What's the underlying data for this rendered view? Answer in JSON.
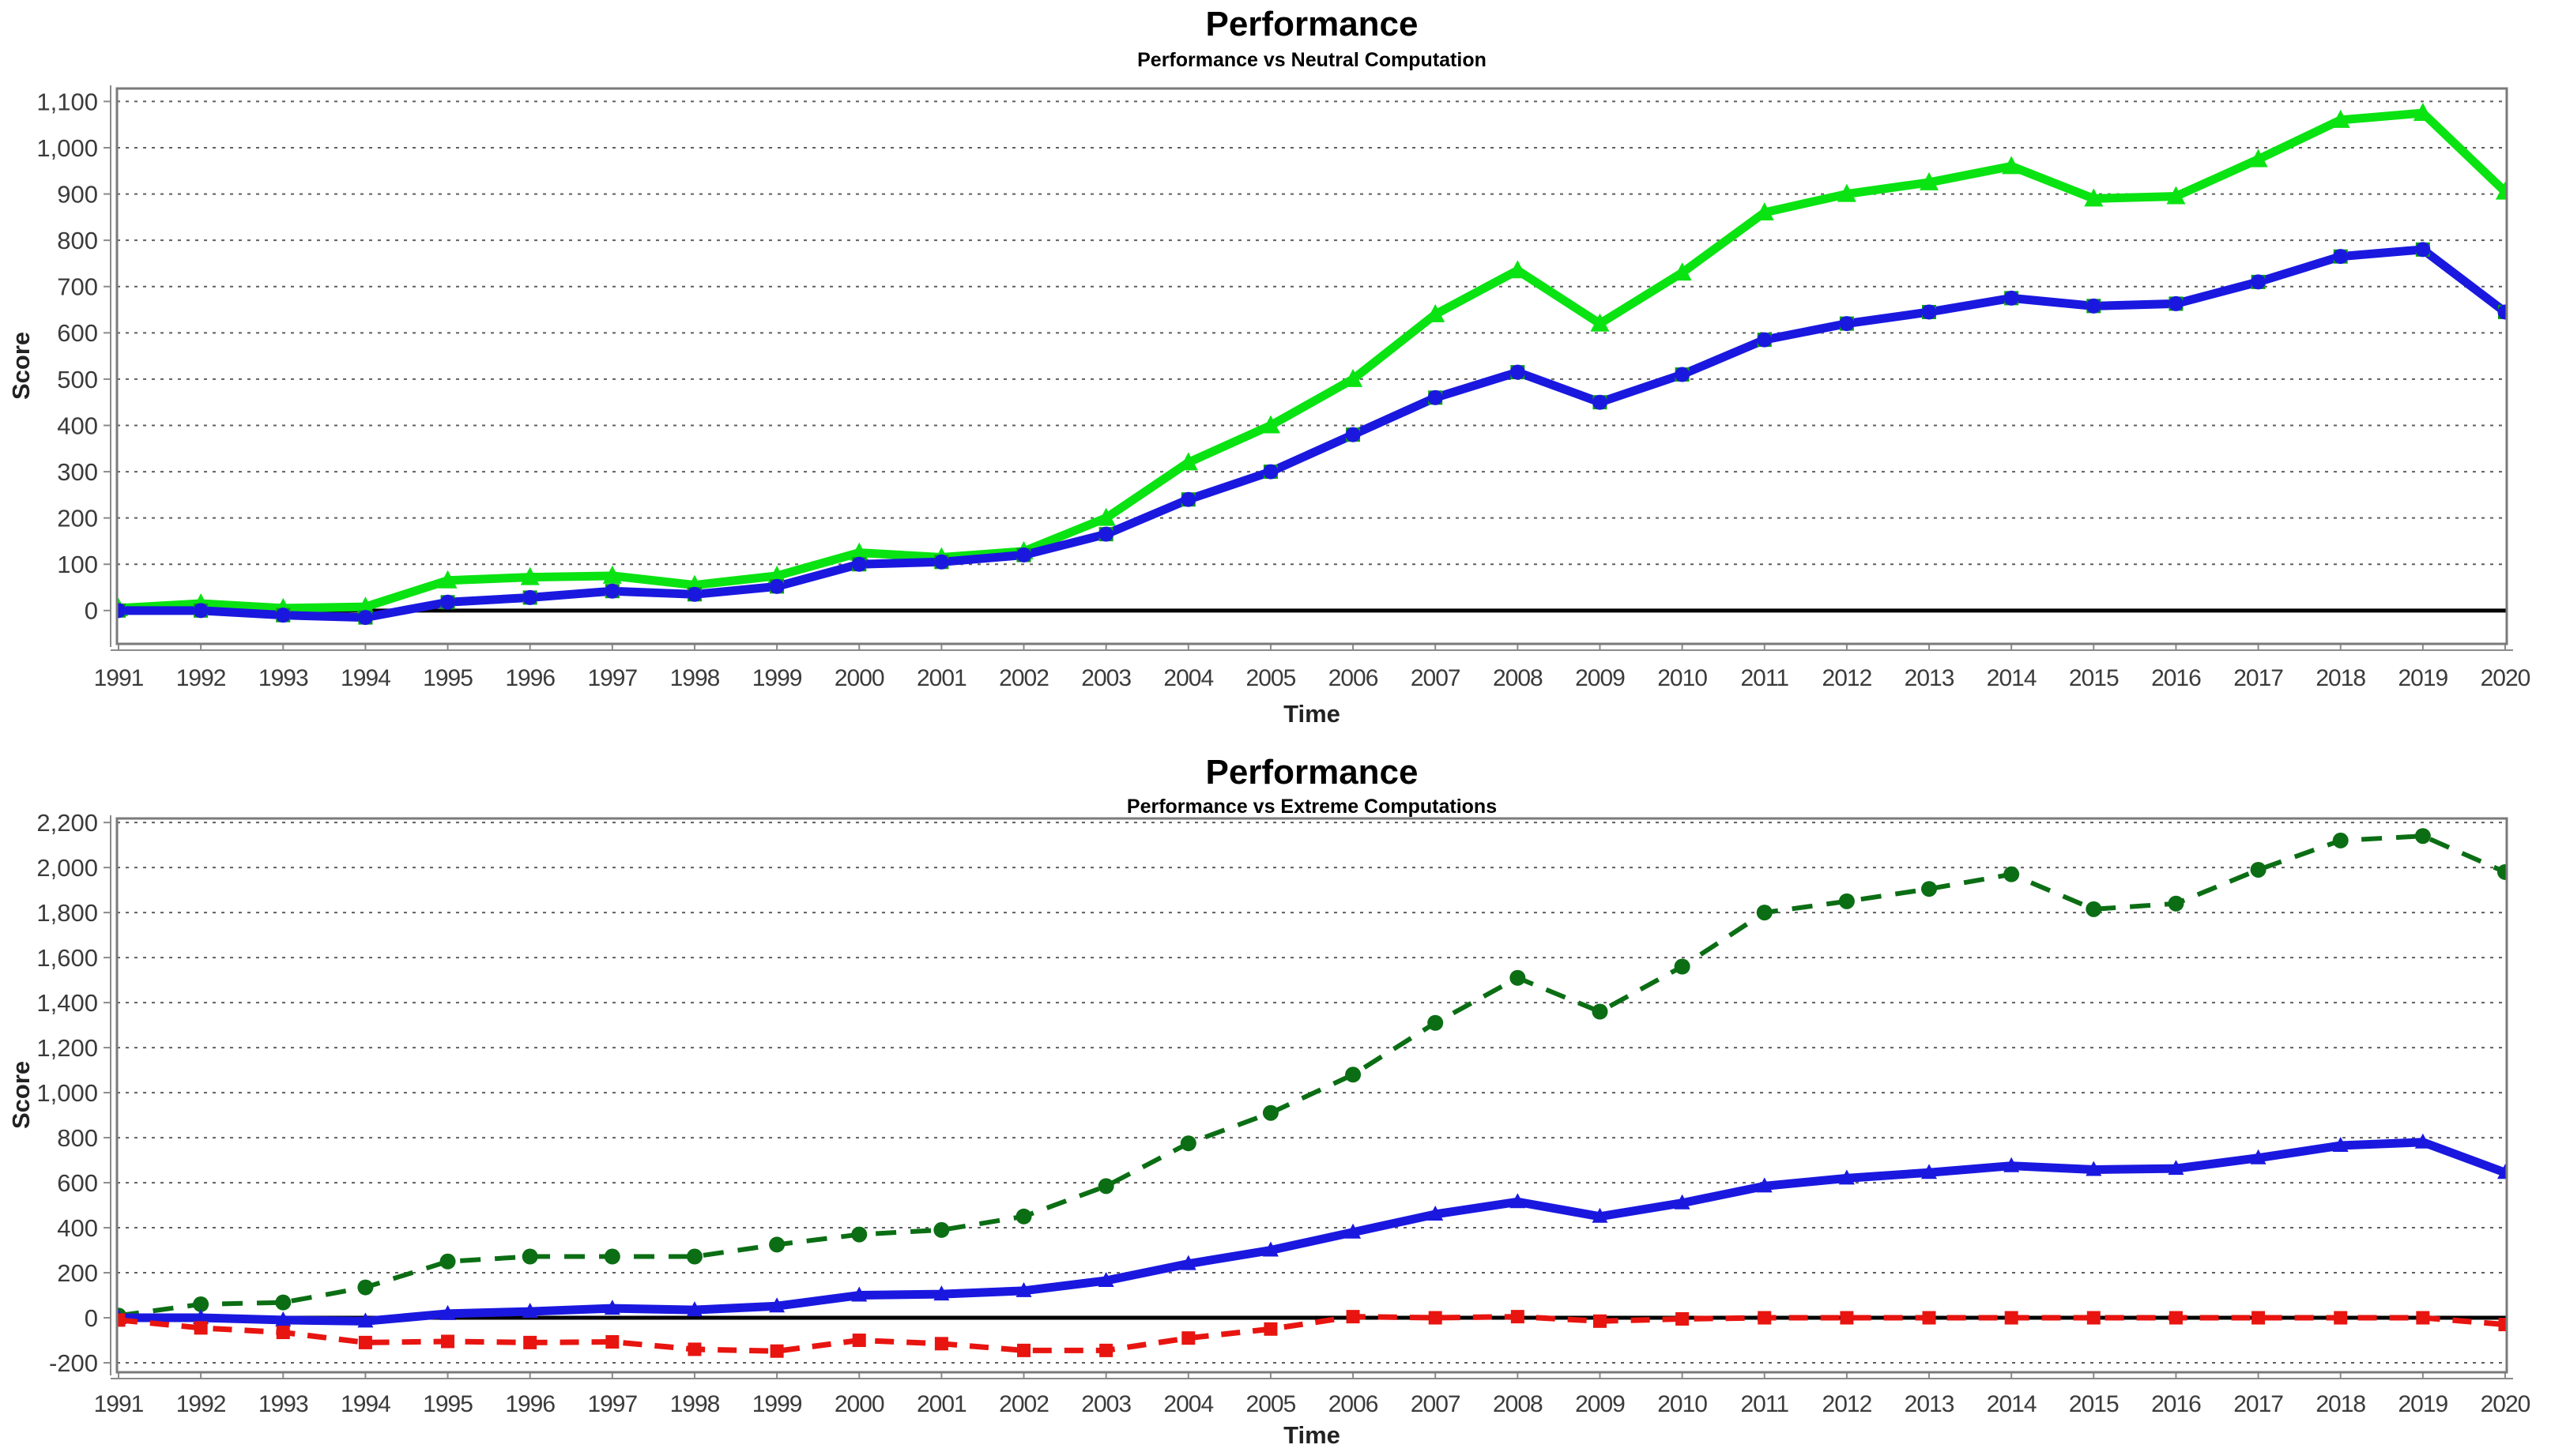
{
  "chart_data": [
    {
      "type": "line",
      "title": "Performance",
      "subtitle": "Performance vs Neutral Computation",
      "xlabel": "Time",
      "ylabel": "Score",
      "x": [
        1991,
        1992,
        1993,
        1994,
        1995,
        1996,
        1997,
        1998,
        1999,
        2000,
        2001,
        2002,
        2003,
        2004,
        2005,
        2006,
        2007,
        2008,
        2009,
        2010,
        2011,
        2012,
        2013,
        2014,
        2015,
        2016,
        2017,
        2018,
        2019,
        2020
      ],
      "yticks": [
        0,
        100,
        200,
        300,
        400,
        500,
        600,
        700,
        800,
        900,
        1000,
        1100
      ],
      "ylim": [
        -72,
        1128
      ],
      "grid": "horizontal-dotted",
      "legend": "none",
      "zero_line": true,
      "series": [
        {
          "name": "green-solid-triangle",
          "color": "#0ae312",
          "dash": "",
          "marker": "triangle",
          "width": 11,
          "values": [
            5,
            15,
            5,
            8,
            65,
            72,
            75,
            55,
            75,
            125,
            115,
            128,
            200,
            320,
            400,
            500,
            640,
            735,
            620,
            730,
            860,
            900,
            925,
            960,
            890,
            895,
            975,
            1060,
            1075,
            905
          ]
        },
        {
          "name": "blue-solid-square",
          "color": "#1a18df",
          "dash": "",
          "marker": "square-circle",
          "marker_under": "#0b9e11",
          "width": 11,
          "values": [
            0,
            0,
            -10,
            -15,
            18,
            28,
            42,
            35,
            52,
            100,
            105,
            120,
            165,
            240,
            300,
            380,
            460,
            515,
            450,
            510,
            585,
            620,
            645,
            675,
            658,
            663,
            710,
            765,
            780,
            645
          ]
        }
      ]
    },
    {
      "type": "line",
      "title": "Performance",
      "subtitle": "Performance vs Extreme Computations",
      "xlabel": "Time",
      "ylabel": "Score",
      "x": [
        1991,
        1992,
        1993,
        1994,
        1995,
        1996,
        1997,
        1998,
        1999,
        2000,
        2001,
        2002,
        2003,
        2004,
        2005,
        2006,
        2007,
        2008,
        2009,
        2010,
        2011,
        2012,
        2013,
        2014,
        2015,
        2016,
        2017,
        2018,
        2019,
        2020
      ],
      "yticks": [
        -200,
        0,
        200,
        400,
        600,
        800,
        1000,
        1200,
        1400,
        1600,
        1800,
        2000,
        2200
      ],
      "ylim": [
        -242,
        2218
      ],
      "grid": "horizontal-dotted",
      "legend": "none",
      "zero_line": true,
      "series": [
        {
          "name": "dark-green-dashed-circle",
          "color": "#0b6e14",
          "dash": "26 18",
          "marker": "circle",
          "width": 6,
          "values": [
            10,
            60,
            68,
            135,
            250,
            272,
            272,
            272,
            325,
            370,
            390,
            450,
            585,
            775,
            910,
            1080,
            1310,
            1510,
            1360,
            1560,
            1800,
            1850,
            1905,
            1970,
            1815,
            1840,
            1990,
            2120,
            2140,
            1980
          ]
        },
        {
          "name": "blue-solid-triangle",
          "color": "#1a18df",
          "dash": "",
          "marker": "triangle-small",
          "width": 11,
          "values": [
            0,
            0,
            -10,
            -15,
            18,
            28,
            42,
            35,
            52,
            100,
            105,
            120,
            165,
            240,
            300,
            380,
            460,
            515,
            450,
            510,
            585,
            620,
            645,
            675,
            658,
            663,
            710,
            765,
            780,
            645
          ]
        },
        {
          "name": "red-dashed-square",
          "color": "#e81410",
          "dash": "24 16",
          "marker": "square",
          "width": 7,
          "values": [
            -10,
            -45,
            -65,
            -110,
            -105,
            -110,
            -107,
            -140,
            -148,
            -100,
            -115,
            -145,
            -145,
            -90,
            -50,
            5,
            0,
            5,
            -15,
            -5,
            0,
            0,
            0,
            0,
            0,
            0,
            0,
            0,
            0,
            -30
          ]
        }
      ]
    }
  ],
  "style": {
    "grid_color": "#5f5f5f",
    "border_color": "#7a7a7a",
    "axis_color": "#8a8a8a",
    "zero_line_color": "#000000",
    "tick_label_color": "#3b3b3b"
  }
}
